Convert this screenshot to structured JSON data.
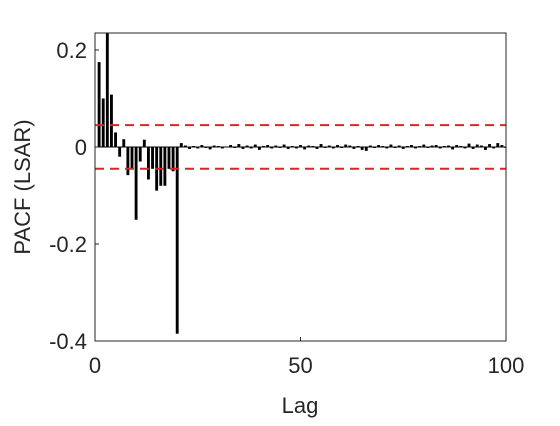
{
  "chart_data": {
    "type": "bar",
    "xlabel": "Lag",
    "ylabel": "PACF (LSAR)",
    "x": [
      1,
      2,
      3,
      4,
      5,
      6,
      7,
      8,
      9,
      10,
      11,
      12,
      13,
      14,
      15,
      16,
      17,
      18,
      19,
      20,
      21,
      22,
      23,
      24,
      25,
      26,
      27,
      28,
      29,
      30,
      31,
      32,
      33,
      34,
      35,
      36,
      37,
      38,
      39,
      40,
      41,
      42,
      43,
      44,
      45,
      46,
      47,
      48,
      49,
      50,
      51,
      52,
      53,
      54,
      55,
      56,
      57,
      58,
      59,
      60,
      61,
      62,
      63,
      64,
      65,
      66,
      67,
      68,
      69,
      70,
      71,
      72,
      73,
      74,
      75,
      76,
      77,
      78,
      79,
      80,
      81,
      82,
      83,
      84,
      85,
      86,
      87,
      88,
      89,
      90,
      91,
      92,
      93,
      94,
      95,
      96,
      97,
      98,
      99,
      100
    ],
    "values": [
      0.175,
      0.1,
      0.235,
      0.108,
      0.03,
      -0.02,
      0.016,
      -0.058,
      -0.045,
      -0.15,
      -0.03,
      0.015,
      -0.067,
      -0.045,
      -0.09,
      -0.08,
      -0.08,
      -0.045,
      -0.05,
      -0.385,
      0.008,
      0.003,
      -0.004,
      0.002,
      -0.003,
      0.004,
      -0.002,
      -0.005,
      0.003,
      0.002,
      -0.003,
      0.001,
      0.004,
      -0.002,
      0.006,
      -0.004,
      0.003,
      -0.003,
      0.005,
      -0.006,
      0.002,
      0.004,
      -0.003,
      0.003,
      -0.002,
      0.005,
      -0.004,
      0.002,
      -0.003,
      0.004,
      -0.005,
      0.003,
      0.002,
      -0.004,
      0.006,
      -0.002,
      0.003,
      -0.003,
      0.004,
      -0.002,
      0.005,
      0.003,
      -0.004,
      0.002,
      -0.006,
      -0.008,
      0.003,
      -0.002,
      0.004,
      0.002,
      -0.003,
      0.005,
      -0.002,
      0.003,
      -0.004,
      0.002,
      0.004,
      -0.003,
      0.002,
      0.005,
      -0.002,
      0.003,
      0.004,
      -0.003,
      0.002,
      0.003,
      -0.005,
      0.004,
      0.002,
      -0.003,
      0.007,
      -0.004,
      0.005,
      0.003,
      -0.006,
      0.006,
      -0.003,
      0.008,
      0.004,
      -0.002
    ],
    "color": "#000000",
    "conf_bounds": [
      0.045,
      -0.045
    ],
    "conf_color": "#d62728",
    "xlim": [
      0,
      100
    ],
    "xticks": [
      0,
      50,
      100
    ],
    "ylim": [
      -0.4,
      0.235
    ],
    "yticks": [
      -0.4,
      -0.2,
      0,
      0.2
    ]
  }
}
